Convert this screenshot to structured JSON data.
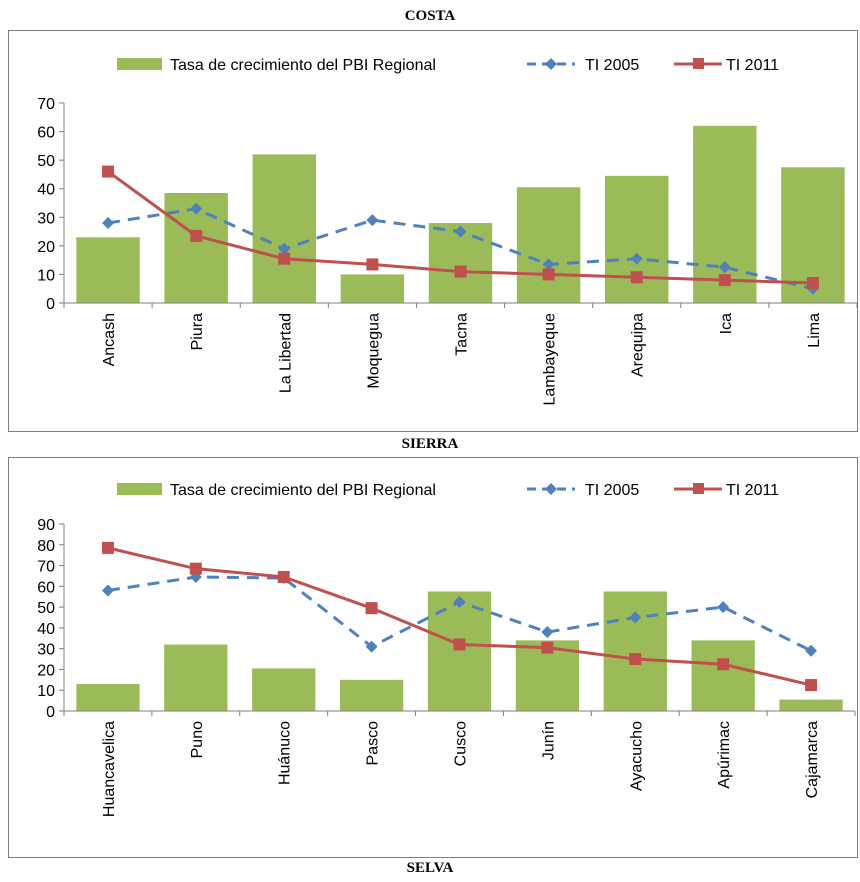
{
  "sections": [
    {
      "title": "COSTA"
    },
    {
      "title": "SIERRA"
    },
    {
      "title": "SELVA"
    }
  ],
  "colors": {
    "bar": "#9bbb59",
    "ti2005": "#4f81bd",
    "ti2011": "#c0504d",
    "axis": "#7f7f7f"
  },
  "chart_data": [
    {
      "type": "bar",
      "title": "COSTA",
      "categories": [
        "Ancash",
        "Piura",
        "La Libertad",
        "Moquegua",
        "Tacna",
        "Lambayeque",
        "Arequipa",
        "Ica",
        "Lima"
      ],
      "ylim": [
        0,
        70
      ],
      "yticks": [
        0,
        10,
        20,
        30,
        40,
        50,
        60,
        70
      ],
      "legend_position": "top",
      "series": [
        {
          "name": "Tasa de crecimiento del PBI Regional",
          "kind": "bar",
          "values": [
            23,
            38.5,
            52,
            10,
            28,
            40.5,
            44.5,
            62,
            47.5
          ]
        },
        {
          "name": "TI 2005",
          "kind": "line-dashed-diamond",
          "values": [
            28,
            33,
            19,
            29,
            25,
            13.5,
            15.5,
            12.5,
            5
          ]
        },
        {
          "name": "TI 2011",
          "kind": "line-square",
          "values": [
            46,
            23.5,
            15.5,
            13.5,
            11,
            10,
            9,
            8,
            7
          ]
        }
      ]
    },
    {
      "type": "bar",
      "title": "SIERRA",
      "categories": [
        "Huancavelica",
        "Puno",
        "Huánuco",
        "Pasco",
        "Cusco",
        "Junín",
        "Ayacucho",
        "Apúrimac",
        "Cajamarca"
      ],
      "ylim": [
        0,
        90
      ],
      "yticks": [
        0,
        10,
        20,
        30,
        40,
        50,
        60,
        70,
        80,
        90
      ],
      "legend_position": "top",
      "series": [
        {
          "name": "Tasa de crecimiento del PBI Regional",
          "kind": "bar",
          "values": [
            13,
            32,
            20.5,
            15,
            57.5,
            34,
            57.5,
            34,
            5.5
          ]
        },
        {
          "name": "TI 2005",
          "kind": "line-dashed-diamond",
          "values": [
            58,
            64.5,
            64,
            31,
            52.5,
            38,
            45,
            50,
            29
          ]
        },
        {
          "name": "TI 2011",
          "kind": "line-square",
          "values": [
            78.5,
            68.5,
            64.5,
            49.5,
            32,
            30.5,
            25,
            22.5,
            12.5
          ]
        }
      ]
    }
  ]
}
